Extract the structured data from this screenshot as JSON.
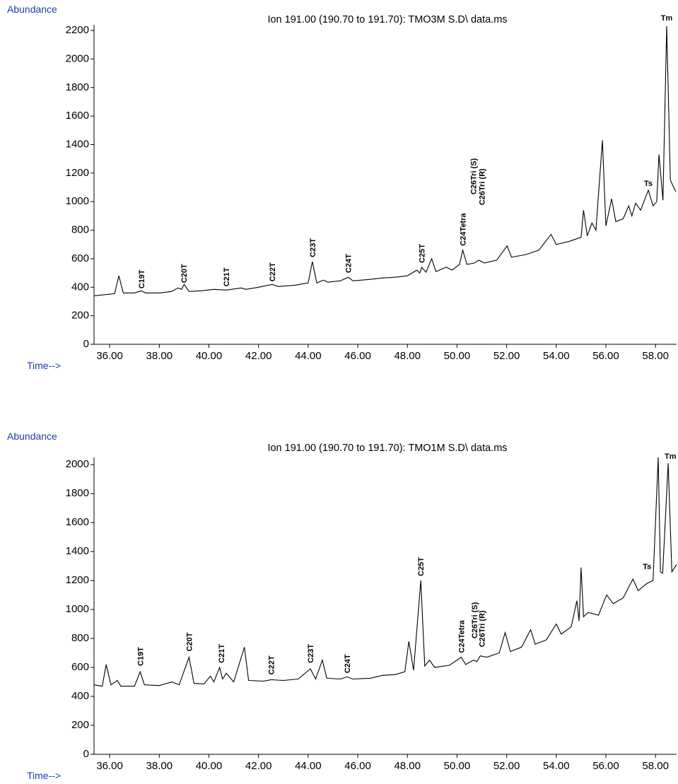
{
  "chart_data": [
    {
      "type": "line",
      "title": "Ion 191.00 (190.70 to 191.70): TMO3M S.D\\ data.ms",
      "ylabel": "Abundance",
      "xlabel": "Time-->",
      "color": "#000000",
      "xlim": [
        35.37,
        58.85
      ],
      "ylim": [
        0,
        2240
      ],
      "xticks": [
        {
          "value": 36,
          "label": "36.00"
        },
        {
          "value": 38,
          "label": "38.00"
        },
        {
          "value": 40,
          "label": "40.00"
        },
        {
          "value": 42,
          "label": "42.00"
        },
        {
          "value": 44,
          "label": "44.00"
        },
        {
          "value": 46,
          "label": "46.00"
        },
        {
          "value": 48,
          "label": "48.00"
        },
        {
          "value": 50,
          "label": "50.00"
        },
        {
          "value": 52,
          "label": "52.00"
        },
        {
          "value": 54,
          "label": "54.00"
        },
        {
          "value": 56,
          "label": "56.00"
        },
        {
          "value": 58,
          "label": "58.00"
        }
      ],
      "yticks": [
        0,
        200,
        400,
        600,
        800,
        1000,
        1200,
        1400,
        1600,
        1800,
        2000,
        2200
      ],
      "x": [
        35.37,
        36.2,
        36.37,
        36.55,
        37.0,
        37.28,
        37.45,
        38.0,
        38.5,
        38.75,
        38.9,
        39.0,
        39.2,
        39.7,
        40.2,
        40.7,
        40.9,
        41.3,
        41.5,
        42.0,
        42.55,
        42.8,
        43.5,
        44.0,
        44.17,
        44.35,
        44.62,
        44.8,
        45.3,
        45.62,
        45.8,
        46.5,
        47.0,
        47.5,
        48.0,
        48.38,
        48.5,
        48.58,
        48.75,
        48.98,
        49.15,
        49.57,
        49.8,
        50.1,
        50.23,
        50.4,
        50.7,
        50.88,
        51.1,
        51.6,
        52.02,
        52.2,
        52.8,
        53.3,
        53.79,
        54.0,
        54.5,
        55.0,
        55.1,
        55.25,
        55.44,
        55.6,
        55.86,
        56.0,
        56.23,
        56.4,
        56.7,
        56.92,
        57.05,
        57.2,
        57.4,
        57.71,
        57.9,
        58.05,
        58.14,
        58.3,
        58.45,
        58.6,
        58.82
      ],
      "values": [
        340,
        355,
        480,
        360,
        360,
        375,
        360,
        360,
        370,
        395,
        385,
        420,
        370,
        375,
        385,
        380,
        385,
        395,
        385,
        400,
        420,
        405,
        415,
        430,
        580,
        430,
        450,
        435,
        445,
        470,
        445,
        455,
        465,
        470,
        480,
        520,
        500,
        540,
        505,
        600,
        510,
        540,
        520,
        560,
        660,
        560,
        570,
        590,
        570,
        590,
        690,
        610,
        630,
        660,
        770,
        700,
        720,
        750,
        940,
        760,
        850,
        800,
        1430,
        830,
        1020,
        860,
        880,
        970,
        900,
        990,
        940,
        1080,
        970,
        1000,
        1330,
        1010,
        2230,
        1150,
        1070
      ],
      "annotations": [
        {
          "text": "C19T",
          "x": 37.28,
          "y": 390,
          "rotation": 90
        },
        {
          "text": "C20T",
          "x": 38.99,
          "y": 430,
          "rotation": 90
        },
        {
          "text": "C21T",
          "x": 40.7,
          "y": 405,
          "rotation": 90
        },
        {
          "text": "C22T",
          "x": 42.55,
          "y": 440,
          "rotation": 90
        },
        {
          "text": "C23T",
          "x": 44.17,
          "y": 610,
          "rotation": 90
        },
        {
          "text": "C24T",
          "x": 45.62,
          "y": 500,
          "rotation": 90
        },
        {
          "text": "C25T",
          "x": 48.58,
          "y": 570,
          "rotation": 90
        },
        {
          "text": "C24Tetra",
          "x": 50.23,
          "y": 690,
          "rotation": 90
        },
        {
          "text": "C26Tri (S)",
          "x": 50.66,
          "y": 1050,
          "rotation": 90
        },
        {
          "text": "C26Tri (R)",
          "x": 51.0,
          "y": 975,
          "rotation": 90
        },
        {
          "text": "Ts",
          "x": 57.71,
          "y": 1110,
          "rotation": 0
        },
        {
          "text": "Tm",
          "x": 58.45,
          "y": 2270,
          "rotation": 0
        }
      ]
    },
    {
      "type": "line",
      "title": "Ion 191.00 (190.70 to 191.70): TMO1M S.D\\ data.ms",
      "ylabel": "Abundance",
      "xlabel": "Time-->",
      "color": "#000000",
      "xlim": [
        35.37,
        58.85
      ],
      "ylim": [
        0,
        2050
      ],
      "xticks": [
        {
          "value": 36,
          "label": "36.00"
        },
        {
          "value": 38,
          "label": "38.00"
        },
        {
          "value": 40,
          "label": "40.00"
        },
        {
          "value": 42,
          "label": "42.00"
        },
        {
          "value": 44,
          "label": "44.00"
        },
        {
          "value": 46,
          "label": "46.00"
        },
        {
          "value": 48,
          "label": "48.00"
        },
        {
          "value": 50,
          "label": "50.00"
        },
        {
          "value": 52,
          "label": "52.00"
        },
        {
          "value": 54,
          "label": "54.00"
        },
        {
          "value": 56,
          "label": "56.00"
        },
        {
          "value": 58,
          "label": "58.00"
        }
      ],
      "yticks": [
        0,
        200,
        400,
        600,
        800,
        1000,
        1200,
        1400,
        1600,
        1800,
        2000
      ],
      "x": [
        35.37,
        35.7,
        35.86,
        36.05,
        36.31,
        36.45,
        37.0,
        37.23,
        37.4,
        38.0,
        38.51,
        38.8,
        39.2,
        39.4,
        39.8,
        40.06,
        40.2,
        40.43,
        40.55,
        40.7,
        41.0,
        41.43,
        41.6,
        42.2,
        42.51,
        43.0,
        43.6,
        44.09,
        44.3,
        44.57,
        44.75,
        45.3,
        45.57,
        45.8,
        46.5,
        47.0,
        47.5,
        47.9,
        48.06,
        48.25,
        48.54,
        48.7,
        48.89,
        49.1,
        49.7,
        50.17,
        50.35,
        50.66,
        50.8,
        50.94,
        51.2,
        51.7,
        51.94,
        52.15,
        52.6,
        52.97,
        53.15,
        53.6,
        54.0,
        54.2,
        54.6,
        54.83,
        54.92,
        55.0,
        55.1,
        55.29,
        55.7,
        56.03,
        56.3,
        56.7,
        57.09,
        57.3,
        57.66,
        57.9,
        58.11,
        58.2,
        58.29,
        58.51,
        58.66,
        58.85
      ],
      "values": [
        480,
        470,
        620,
        480,
        510,
        470,
        470,
        570,
        480,
        475,
        500,
        480,
        670,
        490,
        485,
        540,
        500,
        600,
        520,
        560,
        500,
        740,
        510,
        505,
        515,
        510,
        520,
        590,
        520,
        650,
        525,
        520,
        535,
        520,
        525,
        545,
        550,
        570,
        780,
        580,
        1200,
        610,
        650,
        600,
        615,
        670,
        620,
        650,
        640,
        680,
        670,
        700,
        840,
        710,
        740,
        860,
        760,
        790,
        900,
        830,
        880,
        1060,
        920,
        1290,
        950,
        980,
        960,
        1100,
        1040,
        1080,
        1210,
        1130,
        1180,
        1200,
        2050,
        1260,
        1250,
        2010,
        1260,
        1310
      ],
      "annotations": [
        {
          "text": "C19T",
          "x": 37.23,
          "y": 610,
          "rotation": 90
        },
        {
          "text": "C20T",
          "x": 39.2,
          "y": 710,
          "rotation": 90
        },
        {
          "text": "C21T",
          "x": 40.5,
          "y": 630,
          "rotation": 90
        },
        {
          "text": "C22T",
          "x": 42.51,
          "y": 550,
          "rotation": 90
        },
        {
          "text": "C23T",
          "x": 44.09,
          "y": 630,
          "rotation": 90
        },
        {
          "text": "C24T",
          "x": 45.57,
          "y": 560,
          "rotation": 90
        },
        {
          "text": "C25T",
          "x": 48.54,
          "y": 1230,
          "rotation": 90
        },
        {
          "text": "C24Tetra",
          "x": 50.17,
          "y": 700,
          "rotation": 90
        },
        {
          "text": "C26Tri (S)",
          "x": 50.7,
          "y": 800,
          "rotation": 90
        },
        {
          "text": "C26Tri (R)",
          "x": 51.0,
          "y": 740,
          "rotation": 90
        },
        {
          "text": "Ts",
          "x": 57.66,
          "y": 1280,
          "rotation": 0
        },
        {
          "text": "Tm",
          "x": 58.6,
          "y": 2040,
          "rotation": 0
        }
      ]
    }
  ]
}
